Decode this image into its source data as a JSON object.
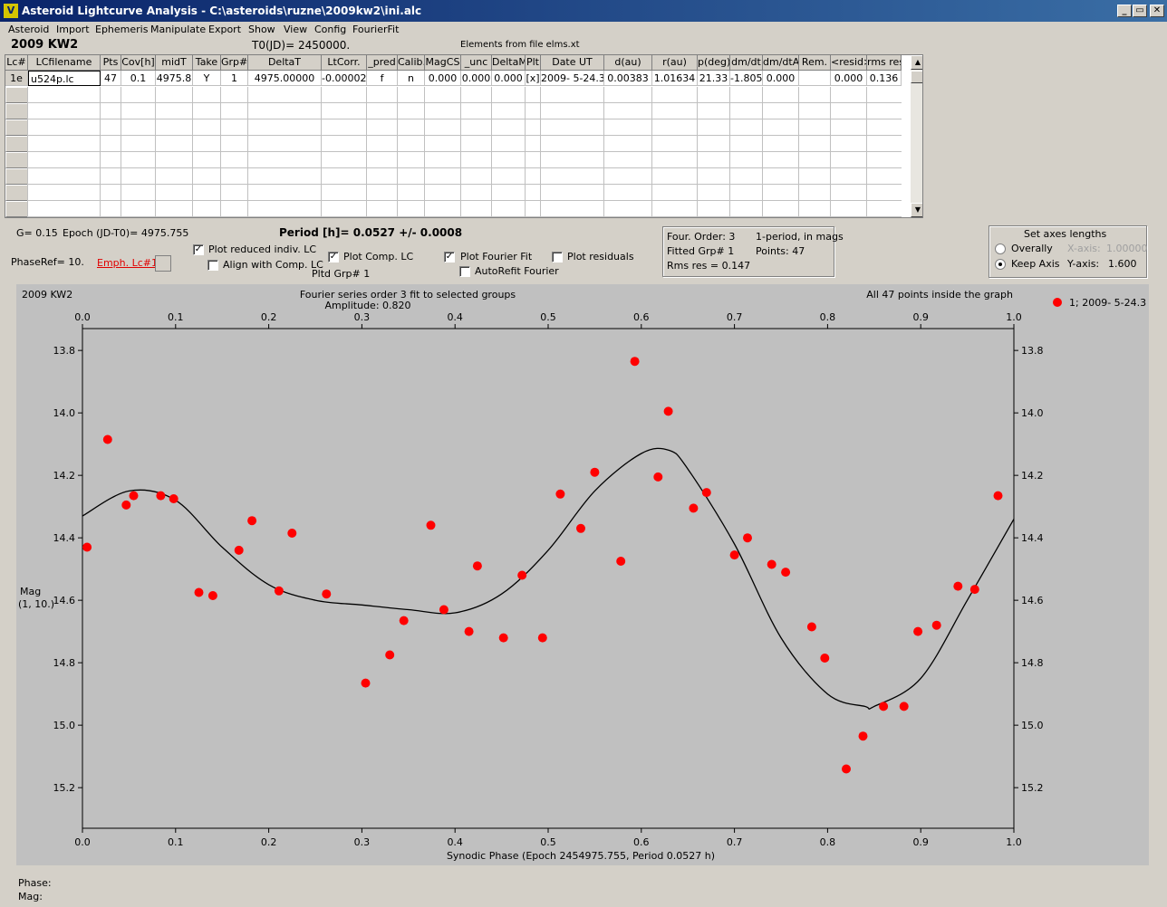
{
  "window": {
    "title": "Asteroid Lightcurve Analysis - C:\\asteroids\\ruzne\\2009kw2\\ini.alc",
    "icon_letter": "V",
    "min_btn": "_",
    "max_btn": "▭",
    "close_btn": "✕"
  },
  "menu": [
    "Asteroid",
    "Import",
    "Ephemeris",
    "Manipulate",
    "Export",
    "Show",
    "View",
    "Config",
    "FourierFit"
  ],
  "header": {
    "asteroid": "2009 KW2",
    "t0": "T0(JD)= 2450000.",
    "elements": "Elements from file elms.xt"
  },
  "table": {
    "columns": [
      "Lc#",
      "LCfilename",
      "Pts",
      "Cov[h]",
      "midT",
      "Take",
      "Grp#",
      "DeltaT",
      "LtCorr.",
      "_pred",
      "Calib.",
      "MagCS",
      "_unc",
      "DeltaM",
      "Plt",
      "Date UT",
      "d(au)",
      "r(au)",
      "p(deg)",
      "dm/dt",
      "dm/dtA",
      "Rem.",
      "<resid>",
      "rms res"
    ],
    "rows": [
      [
        "1e",
        "u524p.lc",
        "47",
        "0.1",
        "4975.8",
        "Y",
        "1",
        "4975.00000",
        "-0.00002",
        "f",
        "n",
        "0.000",
        "0.000",
        "0.000",
        "[x]",
        "2009- 5-24.3",
        "0.00383",
        "1.01634",
        "21.33",
        "-1.805",
        "0.000",
        "",
        "0.000",
        "0.136"
      ]
    ],
    "scroll_up": "▲",
    "scroll_down": "▼"
  },
  "controls": {
    "g": "G= 0.15",
    "epoch": "Epoch (JD-T0)= 4975.755",
    "period": "Period [h]= 0.0527 +/- 0.0008",
    "phase_ref": "PhaseRef= 10.",
    "emph_lc": "Emph. Lc#1:",
    "plot_reduced": "Plot reduced indiv. LC",
    "align_comp": "Align with Comp. LC",
    "plot_comp": "Plot Comp. LC",
    "pltd_grp": "Pltd Grp#  1",
    "plot_fourier": "Plot Fourier Fit",
    "autorefit": "AutoRefit Fourier",
    "plot_residuals": "Plot residuals",
    "checked": {
      "plot_reduced": true,
      "align_comp": false,
      "plot_comp": true,
      "plot_fourier": true,
      "autorefit": false,
      "plot_residuals": false
    }
  },
  "fourier_info": {
    "order": "Four. Order:  3",
    "one_period": "1-period, in mags",
    "fitted_grp": "Fitted Grp# 1",
    "points": "Points: 47",
    "rms": "Rms res      = 0.147"
  },
  "axes_box": {
    "title": "Set axes lengths",
    "overally": "Overally",
    "keep_axis": "Keep Axis",
    "x_axis_label": "X-axis:",
    "x_axis_value": "1.00000",
    "y_axis_label": "Y-axis:",
    "y_axis_value": "1.600",
    "selected": "keep_axis"
  },
  "chart_data": {
    "type": "scatter",
    "title": "Fourier series order 3 fit to selected groups",
    "subtitle": "Amplitude: 0.820",
    "corner_left": "2009 KW2",
    "corner_right": "All 47 points inside the graph",
    "xlabel": "Synodic Phase (Epoch 2454975.755, Period 0.0527 h)",
    "ylabel": "Mag",
    "ylabel2": "(1, 10.)",
    "xlim": [
      0.0,
      1.0
    ],
    "ylim": [
      15.33,
      13.73
    ],
    "y_reversed": true,
    "xticks": [
      "0.0",
      "0.1",
      "0.2",
      "0.3",
      "0.4",
      "0.5",
      "0.6",
      "0.7",
      "0.8",
      "0.9",
      "1.0"
    ],
    "yticks": [
      "13.8",
      "14.0",
      "14.2",
      "14.4",
      "14.6",
      "14.8",
      "15.0",
      "15.2"
    ],
    "legend": "1; 2009- 5-24.3",
    "point_color": "#ff0000",
    "series": [
      {
        "name": "1; 2009- 5-24.3",
        "points": [
          [
            0.005,
            14.43
          ],
          [
            0.027,
            14.085
          ],
          [
            0.047,
            14.295
          ],
          [
            0.055,
            14.265
          ],
          [
            0.084,
            14.265
          ],
          [
            0.098,
            14.275
          ],
          [
            0.125,
            14.575
          ],
          [
            0.14,
            14.585
          ],
          [
            0.168,
            14.44
          ],
          [
            0.182,
            14.345
          ],
          [
            0.211,
            14.57
          ],
          [
            0.225,
            14.385
          ],
          [
            0.262,
            14.58
          ],
          [
            0.304,
            14.865
          ],
          [
            0.33,
            14.775
          ],
          [
            0.345,
            14.665
          ],
          [
            0.374,
            14.36
          ],
          [
            0.388,
            14.63
          ],
          [
            0.415,
            14.7
          ],
          [
            0.424,
            14.49
          ],
          [
            0.452,
            14.72
          ],
          [
            0.472,
            14.52
          ],
          [
            0.494,
            14.72
          ],
          [
            0.513,
            14.26
          ],
          [
            0.535,
            14.37
          ],
          [
            0.55,
            14.19
          ],
          [
            0.578,
            14.475
          ],
          [
            0.593,
            13.835
          ],
          [
            0.618,
            14.205
          ],
          [
            0.629,
            13.995
          ],
          [
            0.656,
            14.305
          ],
          [
            0.67,
            14.255
          ],
          [
            0.7,
            14.455
          ],
          [
            0.714,
            14.4
          ],
          [
            0.74,
            14.485
          ],
          [
            0.755,
            14.51
          ],
          [
            0.783,
            14.685
          ],
          [
            0.797,
            14.785
          ],
          [
            0.82,
            15.14
          ],
          [
            0.838,
            15.035
          ],
          [
            0.86,
            14.94
          ],
          [
            0.882,
            14.94
          ],
          [
            0.897,
            14.7
          ],
          [
            0.917,
            14.68
          ],
          [
            0.94,
            14.555
          ],
          [
            0.958,
            14.565
          ],
          [
            0.983,
            14.265
          ]
        ]
      }
    ],
    "fit_curve": [
      [
        0.0,
        14.33
      ],
      [
        0.05,
        14.25
      ],
      [
        0.1,
        14.28
      ],
      [
        0.15,
        14.43
      ],
      [
        0.2,
        14.55
      ],
      [
        0.25,
        14.6
      ],
      [
        0.3,
        14.615
      ],
      [
        0.35,
        14.63
      ],
      [
        0.4,
        14.64
      ],
      [
        0.45,
        14.58
      ],
      [
        0.5,
        14.44
      ],
      [
        0.55,
        14.25
      ],
      [
        0.6,
        14.13
      ],
      [
        0.63,
        14.12
      ],
      [
        0.65,
        14.18
      ],
      [
        0.7,
        14.42
      ],
      [
        0.75,
        14.72
      ],
      [
        0.8,
        14.9
      ],
      [
        0.84,
        14.94
      ],
      [
        0.85,
        14.94
      ],
      [
        0.9,
        14.85
      ],
      [
        0.95,
        14.6
      ],
      [
        1.0,
        14.34
      ]
    ]
  },
  "status": {
    "phase": "Phase:",
    "mag": "Mag:"
  }
}
